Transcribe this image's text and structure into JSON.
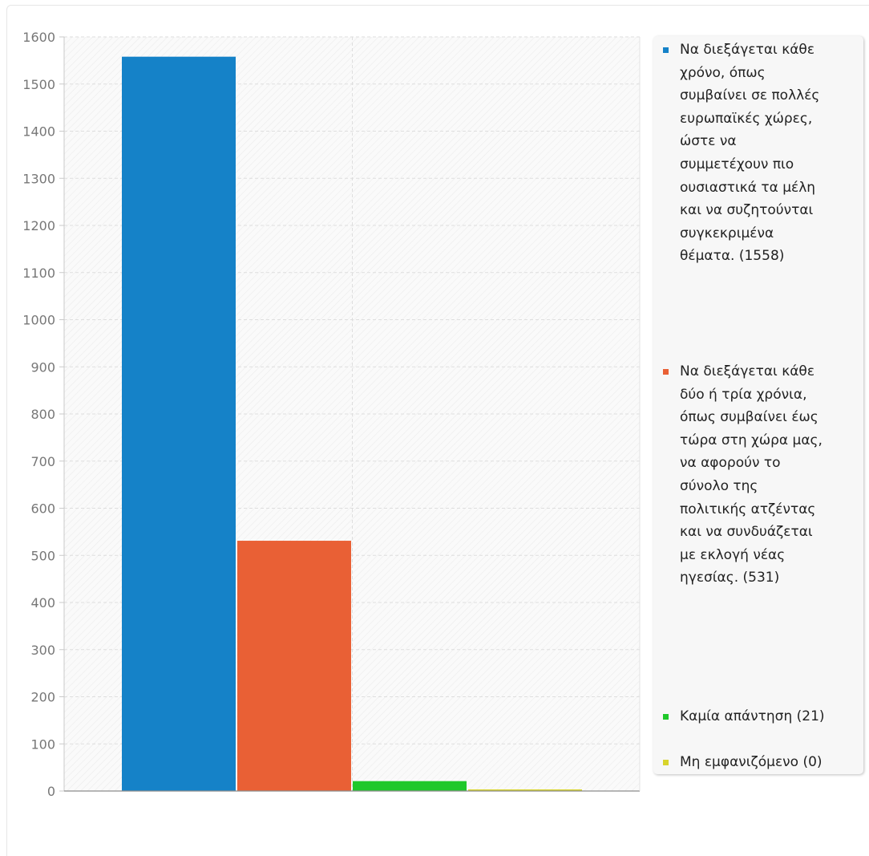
{
  "chart_data": {
    "type": "bar",
    "title": "",
    "xlabel": "",
    "ylabel": "",
    "ylim": [
      0,
      1600
    ],
    "yticks": [
      0,
      100,
      200,
      300,
      400,
      500,
      600,
      700,
      800,
      900,
      1000,
      1100,
      1200,
      1300,
      1400,
      1500,
      1600
    ],
    "grid": true,
    "legend_position": "right",
    "series": [
      {
        "name": "Να διεξάγεται κάθε χρόνο, όπως συμβαίνει σε πολλές ευρωπαϊκές χώρες, ώστε να συμμετέχουν πιο ουσιαστικά τα μέλη και να συζητούνται συγκεκριμένα θέματα. (1558)",
        "value": 1558,
        "color": "#1582c8"
      },
      {
        "name": "Να διεξάγεται κάθε δύο ή τρία χρόνια, όπως συμβαίνει έως τώρα στη χώρα μας, να αφορούν το σύνολο της πολιτικής ατζέντας και να συνδυάζεται με εκλογή νέας ηγεσίας. (531)",
        "value": 531,
        "color": "#e96035"
      },
      {
        "name": "Καμία απάντηση (21)",
        "value": 21,
        "color": "#1fc82a"
      },
      {
        "name": "Μη εμφανιζόμενο (0)",
        "value": 0,
        "color": "#d8d42c"
      }
    ]
  }
}
